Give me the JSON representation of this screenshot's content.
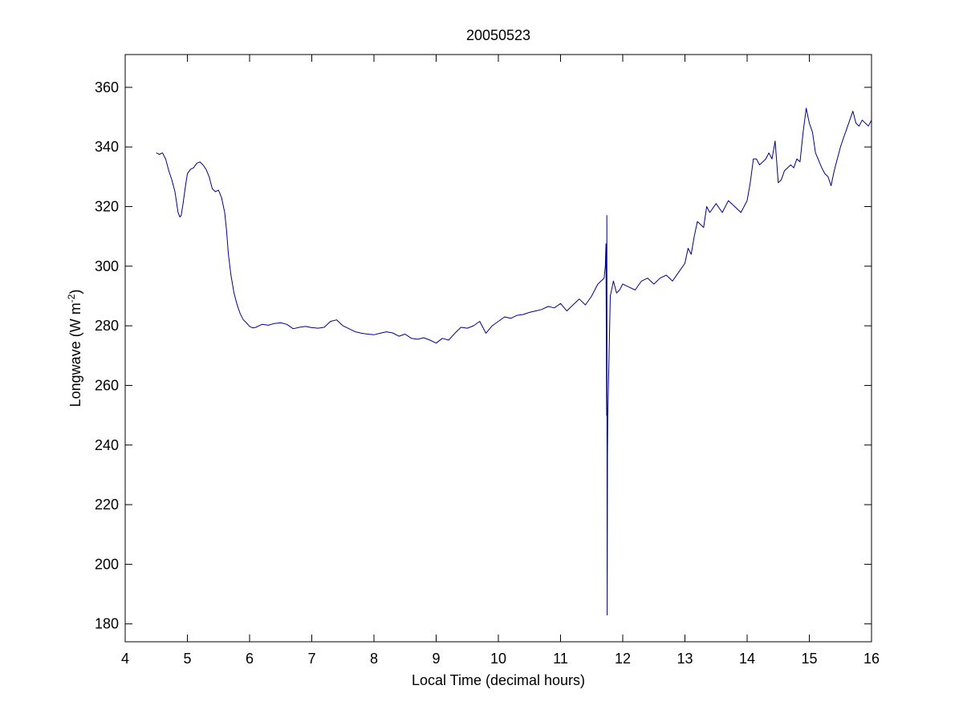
{
  "chart_data": {
    "type": "line",
    "title": "20050523",
    "xlabel": "Local Time (decimal hours)",
    "ylabel": {
      "main": "Longwave (W m",
      "superscript": "-2",
      "close": ")"
    },
    "xlim": [
      4,
      16
    ],
    "ylim": [
      174,
      371
    ],
    "xticks": [
      4,
      5,
      6,
      7,
      8,
      9,
      10,
      11,
      12,
      13,
      14,
      15,
      16
    ],
    "xtick_labels": [
      "4",
      "5",
      "6",
      "7",
      "8",
      "9",
      "10",
      "11",
      "12",
      "13",
      "14",
      "15",
      "16"
    ],
    "yticks": [
      180,
      200,
      220,
      240,
      260,
      280,
      300,
      320,
      340,
      360
    ],
    "ytick_labels": [
      "180",
      "200",
      "220",
      "240",
      "260",
      "280",
      "300",
      "320",
      "340",
      "360"
    ],
    "grid": false,
    "legend": null,
    "series": [
      {
        "color": "#00008B",
        "x": [
          4.5,
          4.55,
          4.6,
          4.65,
          4.7,
          4.75,
          4.8,
          4.85,
          4.88,
          4.9,
          4.93,
          4.97,
          5.0,
          5.05,
          5.1,
          5.15,
          5.2,
          5.25,
          5.3,
          5.35,
          5.4,
          5.45,
          5.5,
          5.55,
          5.6,
          5.63,
          5.66,
          5.7,
          5.75,
          5.8,
          5.85,
          5.9,
          5.95,
          6.0,
          6.05,
          6.1,
          6.2,
          6.3,
          6.4,
          6.5,
          6.6,
          6.7,
          6.8,
          6.9,
          7.0,
          7.1,
          7.2,
          7.3,
          7.4,
          7.5,
          7.6,
          7.7,
          7.8,
          7.9,
          8.0,
          8.1,
          8.2,
          8.3,
          8.4,
          8.5,
          8.6,
          8.7,
          8.8,
          8.9,
          9.0,
          9.1,
          9.2,
          9.3,
          9.4,
          9.5,
          9.6,
          9.7,
          9.8,
          9.9,
          10.0,
          10.1,
          10.2,
          10.3,
          10.4,
          10.5,
          10.6,
          10.7,
          10.8,
          10.9,
          11.0,
          11.1,
          11.2,
          11.3,
          11.4,
          11.5,
          11.55,
          11.6,
          11.65,
          11.7,
          11.72,
          11.73,
          11.74,
          11.745,
          11.75,
          11.755,
          11.76,
          11.8,
          11.85,
          11.9,
          11.95,
          12.0,
          12.1,
          12.2,
          12.3,
          12.4,
          12.5,
          12.6,
          12.7,
          12.8,
          12.9,
          13.0,
          13.05,
          13.1,
          13.15,
          13.2,
          13.3,
          13.35,
          13.4,
          13.5,
          13.6,
          13.7,
          13.8,
          13.9,
          14.0,
          14.05,
          14.1,
          14.15,
          14.2,
          14.3,
          14.35,
          14.4,
          14.45,
          14.5,
          14.55,
          14.6,
          14.7,
          14.75,
          14.8,
          14.85,
          14.9,
          14.95,
          15.0,
          15.05,
          15.1,
          15.2,
          15.25,
          15.3,
          15.35,
          15.4,
          15.5,
          15.55,
          15.6,
          15.65,
          15.7,
          15.75,
          15.8,
          15.85,
          15.9,
          15.95,
          16.0
        ],
        "y": [
          338,
          337.5,
          338,
          336,
          332,
          329,
          325,
          318,
          316.5,
          317,
          321,
          327,
          331,
          332.5,
          333,
          334.5,
          335,
          334,
          332.5,
          330,
          326,
          325,
          325.5,
          323,
          318,
          312,
          304,
          297,
          291,
          287,
          284,
          282,
          281,
          279.8,
          279.3,
          279.5,
          280.5,
          280.2,
          280.8,
          281,
          280.5,
          279,
          279.5,
          279.8,
          279.4,
          279.2,
          279.5,
          281.5,
          282,
          280,
          279,
          278,
          277.5,
          277.2,
          277,
          277.5,
          278,
          277.6,
          276.5,
          277.2,
          275.8,
          275.5,
          276,
          275.2,
          274.2,
          275.8,
          275.2,
          277.5,
          279.5,
          279.2,
          280,
          281.5,
          277.5,
          280,
          281.5,
          283,
          282.5,
          283.5,
          283.8,
          284.5,
          285,
          285.5,
          286.5,
          286,
          287.5,
          285,
          287,
          289,
          287,
          290,
          292,
          294,
          295,
          296,
          300,
          307.5,
          250,
          317,
          183,
          237,
          250,
          290,
          295,
          291,
          292,
          294,
          293,
          292,
          295,
          296,
          294,
          296,
          297,
          295,
          298,
          301,
          306,
          304,
          310,
          315,
          313,
          320,
          318,
          321,
          318,
          322,
          320,
          318,
          322,
          328,
          336,
          336,
          334,
          336,
          338,
          336,
          342,
          328,
          329,
          332,
          334,
          333,
          336,
          335,
          345,
          353,
          348,
          345,
          338,
          333,
          331,
          330,
          327,
          332,
          340,
          343,
          346,
          349,
          352,
          348,
          347,
          349,
          348,
          347,
          349
        ]
      }
    ]
  }
}
